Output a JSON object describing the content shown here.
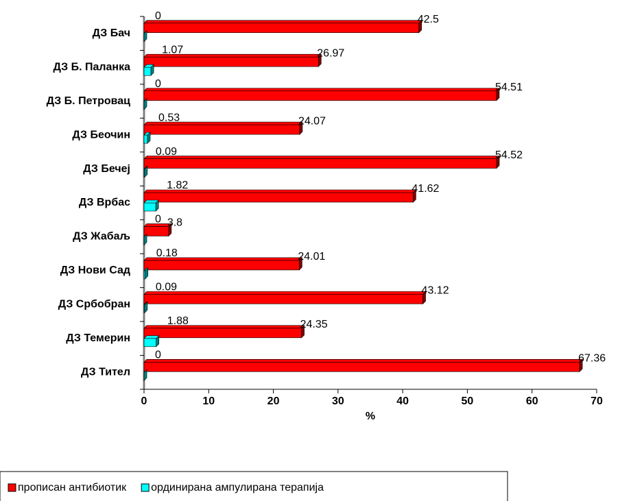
{
  "chart_data": {
    "type": "bar",
    "orientation": "horizontal",
    "categories": [
      "ДЗ Бач",
      "ДЗ Б. Паланка",
      "ДЗ Б. Петровац",
      "ДЗ Беочин",
      "ДЗ Бечеј",
      "ДЗ Врбас",
      "ДЗ Жабаљ",
      "ДЗ Нови Сад",
      "ДЗ Србобран",
      "ДЗ Темерин",
      "ДЗ Тител"
    ],
    "series": [
      {
        "name": "прописан антибиотик",
        "color": "#ff0000",
        "values": [
          42.5,
          26.97,
          54.51,
          24.07,
          54.52,
          41.62,
          3.8,
          24.01,
          43.12,
          24.35,
          67.36
        ]
      },
      {
        "name": "ординирана ампулирана терапија",
        "color": "#00ffff",
        "values": [
          0,
          1.07,
          0,
          0.53,
          0.09,
          1.82,
          0,
          0.18,
          0.09,
          1.88,
          0
        ]
      }
    ],
    "xlabel": "%",
    "xlim": [
      0,
      70
    ],
    "xticks": [
      0,
      10,
      20,
      30,
      40,
      50,
      60,
      70
    ],
    "legend": "bottom"
  }
}
